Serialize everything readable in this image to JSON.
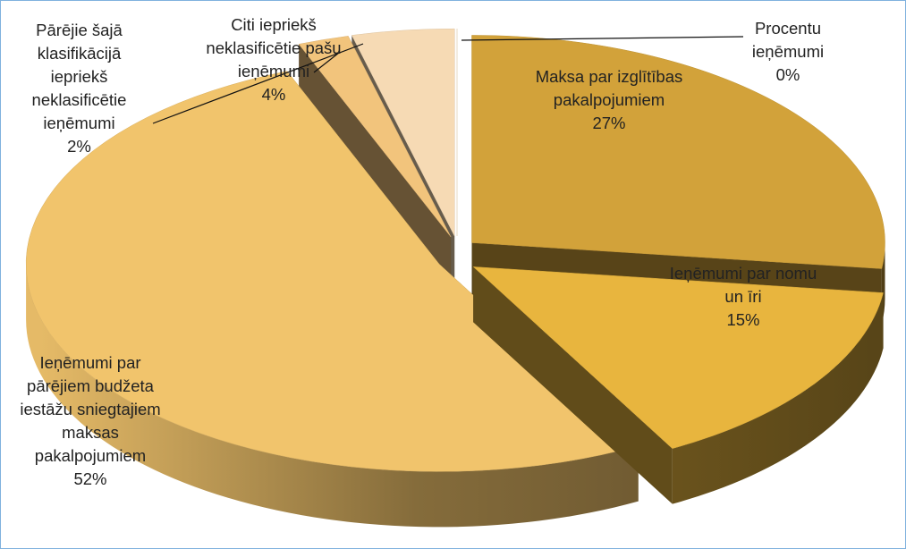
{
  "chart_data": {
    "type": "pie3d",
    "categories": [
      "Procentu ieņēmumi",
      "Maksa par izglītības pakalpojumiem",
      "Ieņēmumi par nomu un īri",
      "Ieņēmumi par pārējiem budžeta iestāžu sniegtajiem maksas pakalpojumiem",
      "Pārējie šajā klasifikācijā iepriekš neklasificētie ieņēmumi",
      "Citi iepriekš neklasificētie pašu ieņēmumi"
    ],
    "values": [
      0,
      27,
      15,
      52,
      2,
      4
    ],
    "value_labels": [
      "0%",
      "27%",
      "15%",
      "52%",
      "2%",
      "4%"
    ],
    "colors": [
      "#f8e4c4",
      "#d2a23a",
      "#e8b53e",
      "#f1c46c",
      "#f2c47c",
      "#f6dab4"
    ]
  }
}
